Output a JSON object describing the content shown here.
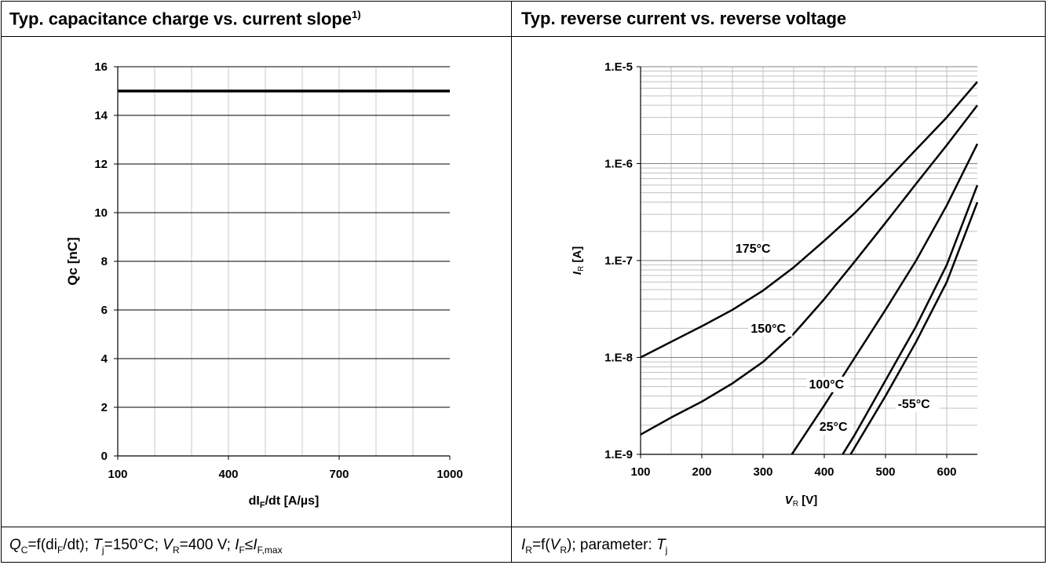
{
  "panels": {
    "left_title_main": "Typ. capacitance charge vs. current slope",
    "left_title_sup": "1)",
    "right_title": "Typ. reverse current vs. reverse voltage",
    "left_caption": {
      "q": "Q",
      "q_sub": "C",
      "part1": "=f(di",
      "di_sub": "F",
      "part2": "/dt); ",
      "t": "T",
      "t_sub": "j",
      "part3": "=150°C; ",
      "v": "V",
      "v_sub": "R",
      "part4": "=400 V; ",
      "i1": "I",
      "i1_sub": "F",
      "le": "≤",
      "i2": "I",
      "i2_sub": "F,max"
    },
    "right_caption": {
      "i": "I",
      "i_sub": "R",
      "part1": "=f(",
      "v": "V",
      "v_sub": "R",
      "part2": "); parameter: ",
      "t": "T",
      "t_sub": "j"
    }
  },
  "chart_data": [
    {
      "type": "line",
      "xlabel_main": "dI",
      "xlabel_sub": "F",
      "xlabel_rest": "/dt [A/µs]",
      "ylabel": "Qc [nC]",
      "xlim": [
        100,
        1000
      ],
      "ylim": [
        0,
        16
      ],
      "x_ticks": [
        100,
        400,
        700,
        1000
      ],
      "y_ticks": [
        0,
        2,
        4,
        6,
        8,
        10,
        12,
        14,
        16
      ],
      "grid": true,
      "series": [
        {
          "x": [
            100,
            1000
          ],
          "y": [
            15,
            15
          ]
        }
      ]
    },
    {
      "type": "line",
      "log_y": true,
      "xlabel_main": "V",
      "xlabel_sub": "R",
      "xlabel_rest": " [V]",
      "ylabel_main": "I",
      "ylabel_sub": "R",
      "ylabel_rest": " [A]",
      "xlim": [
        100,
        650
      ],
      "ylim": [
        1e-09,
        1e-05
      ],
      "x_ticks": [
        100,
        200,
        300,
        400,
        500,
        600
      ],
      "y_ticks": [
        {
          "value": 1e-09,
          "label": "1.E-9"
        },
        {
          "value": 1e-08,
          "label": "1.E-8"
        },
        {
          "value": 1e-07,
          "label": "1.E-7"
        },
        {
          "value": 1e-06,
          "label": "1.E-6"
        },
        {
          "value": 1e-05,
          "label": "1.E-5"
        }
      ],
      "grid": true,
      "series": [
        {
          "name": "175°C",
          "label_at": [
            255,
            1.2e-07
          ],
          "x": [
            100,
            150,
            200,
            250,
            300,
            350,
            400,
            450,
            500,
            550,
            600,
            650
          ],
          "y": [
            1e-08,
            1.45e-08,
            2.1e-08,
            3.1e-08,
            4.9e-08,
            8.5e-08,
            1.6e-07,
            3.1e-07,
            6.5e-07,
            1.4e-06,
            3e-06,
            7e-06
          ]
        },
        {
          "name": "150°C",
          "label_at": [
            280,
            1.8e-08
          ],
          "x": [
            100,
            150,
            200,
            250,
            300,
            350,
            400,
            450,
            500,
            550,
            600,
            650
          ],
          "y": [
            1.6e-09,
            2.4e-09,
            3.5e-09,
            5.4e-09,
            9e-09,
            1.75e-08,
            4e-08,
            9.8e-08,
            2.45e-07,
            6.2e-07,
            1.55e-06,
            4e-06
          ]
        },
        {
          "name": "100°C",
          "label_at": [
            375,
            4.8e-09
          ],
          "x": [
            347,
            400,
            450,
            500,
            550,
            600,
            650
          ],
          "y": [
            1e-09,
            3.2e-09,
            1e-08,
            3.1e-08,
            1e-07,
            3.7e-07,
            1.6e-06
          ]
        },
        {
          "name": "25°C",
          "label_at": [
            392,
            1.75e-09
          ],
          "x": [
            430,
            450,
            500,
            550,
            600,
            650
          ],
          "y": [
            1e-09,
            1.6e-09,
            5.8e-09,
            2.1e-08,
            9e-08,
            6e-07
          ]
        },
        {
          "name": "-55°C",
          "label_at": [
            520,
            3e-09
          ],
          "x": [
            443,
            500,
            550,
            600,
            650
          ],
          "y": [
            1e-09,
            4e-09,
            1.45e-08,
            6e-08,
            4e-07
          ]
        }
      ]
    }
  ]
}
